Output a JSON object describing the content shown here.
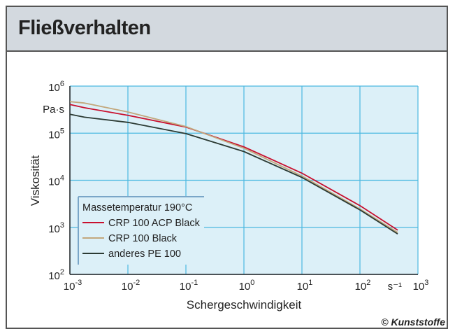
{
  "header": {
    "title": "Fließverhalten"
  },
  "copyright": {
    "symbol": "©",
    "text": "Kunststoffe"
  },
  "colors": {
    "plot_bg": "#dcf0f8",
    "grid": "#4bb8e0",
    "red": "#c8102e",
    "tan": "#c2a77c",
    "black": "#2b3a33"
  },
  "chart_data": {
    "type": "line",
    "xscale": "log",
    "yscale": "log",
    "xlabel": "Schergeschwindigkeit",
    "xunit": "s⁻¹",
    "ylabel": "Viskosität",
    "yunit": "Pa·s",
    "xlim": [
      0.001,
      1000
    ],
    "ylim": [
      100,
      1000000
    ],
    "grid": true,
    "xticks": [
      {
        "base": "10",
        "exp": "-3"
      },
      {
        "base": "10",
        "exp": "-2"
      },
      {
        "base": "10",
        "exp": "-1"
      },
      {
        "base": "10",
        "exp": "0"
      },
      {
        "base": "10",
        "exp": "1"
      },
      {
        "base": "10",
        "exp": "2"
      },
      {
        "base": "10",
        "exp": "3"
      }
    ],
    "yticks": [
      {
        "base": "10",
        "exp": "2"
      },
      {
        "base": "10",
        "exp": "3"
      },
      {
        "base": "10",
        "exp": "4"
      },
      {
        "base": "10",
        "exp": "5"
      },
      {
        "base": "10",
        "exp": "6"
      }
    ],
    "legend": {
      "title": "Massetemperatur 190°C",
      "placement": "bottom-left"
    },
    "series": [
      {
        "name": "CRP 100 ACP Black",
        "color": "#c8102e",
        "log_x": [
          -3,
          -2.75,
          -2,
          -1,
          0,
          1,
          2,
          2.65
        ],
        "log_y": [
          5.61,
          5.54,
          5.38,
          5.13,
          4.71,
          4.15,
          3.46,
          2.94
        ]
      },
      {
        "name": "CRP 100 Black",
        "color": "#c2a77c",
        "log_x": [
          -3,
          -2.75,
          -2,
          -1,
          0,
          1,
          2,
          2.65
        ],
        "log_y": [
          5.67,
          5.64,
          5.45,
          5.14,
          4.68,
          4.09,
          3.39,
          2.89
        ]
      },
      {
        "name": "anderes PE 100",
        "color": "#2b3a33",
        "log_x": [
          -3,
          -2.75,
          -2,
          -1,
          0,
          1,
          2,
          2.65
        ],
        "log_y": [
          5.4,
          5.34,
          5.23,
          4.99,
          4.61,
          4.06,
          3.37,
          2.86
        ]
      }
    ]
  }
}
